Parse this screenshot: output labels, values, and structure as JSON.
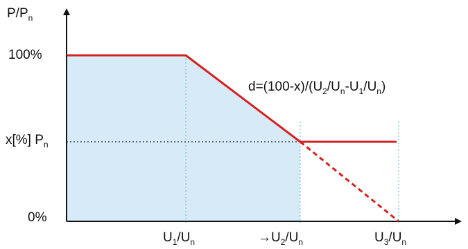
{
  "axes": {
    "y_label": {
      "main": "P/P",
      "sub": "n"
    },
    "y_ticks": {
      "top": "100%",
      "mid": {
        "main": "x[%] P",
        "sub": "n"
      },
      "bottom": "0%"
    },
    "x_ticks": [
      {
        "prefix": "",
        "a": "U",
        "a_sub": "1",
        "b": "/U",
        "b_sub": "n"
      },
      {
        "prefix": "→",
        "a": "U",
        "a_sub": "2",
        "b": "/U",
        "b_sub": "n"
      },
      {
        "prefix": "",
        "a": "U",
        "a_sub": "3",
        "b": "/U",
        "b_sub": "n"
      }
    ]
  },
  "formula": {
    "p1": "d=(100-x)/(U",
    "s1": "2",
    "p2": "/U",
    "s2": "n",
    "p3": "-U",
    "s3": "1",
    "p4": "/U",
    "s4": "n",
    "p5": ")"
  },
  "colors": {
    "curve": "#d42020",
    "fill": "#d6ebf7",
    "guide": "#7fc4e0",
    "axis": "#111111"
  }
}
